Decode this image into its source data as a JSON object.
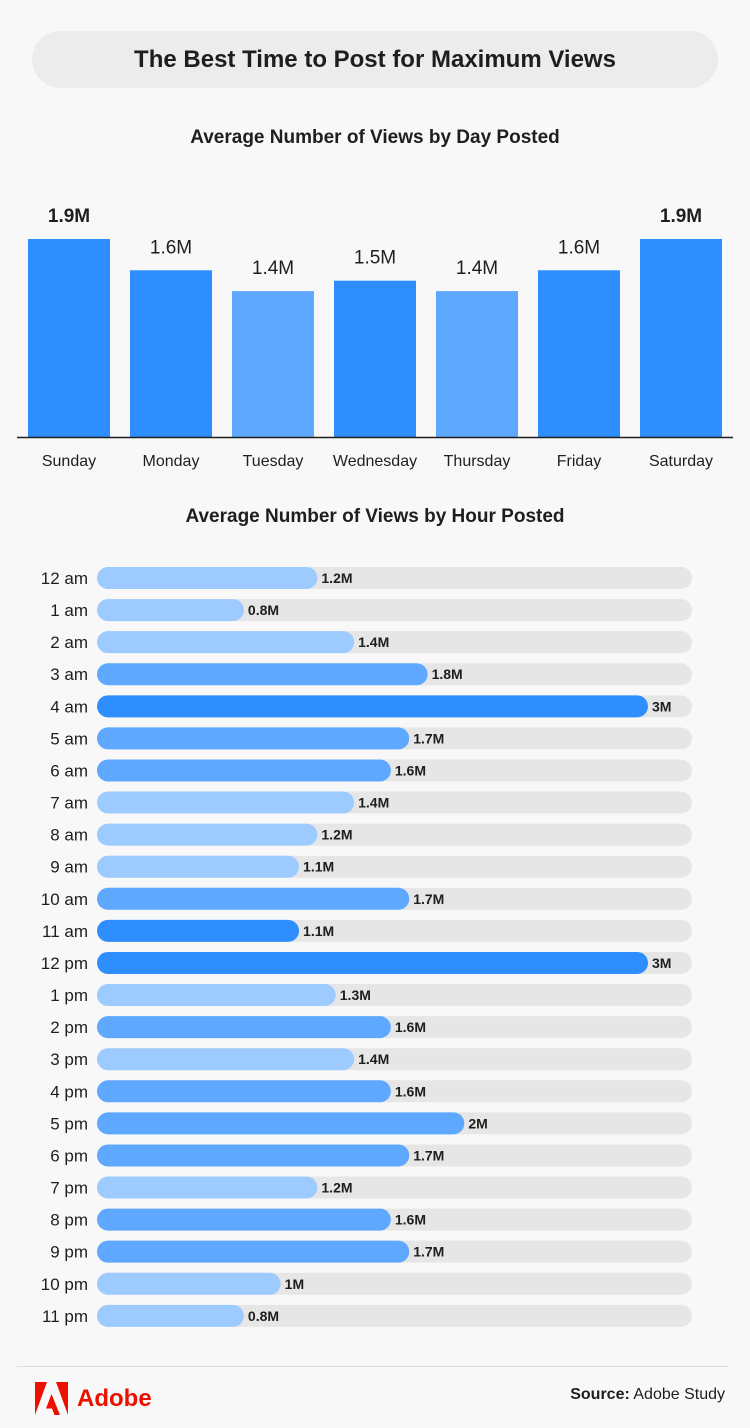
{
  "title": "The Best Time to Post for Maximum Views",
  "colors": {
    "dark": "#2f8efe",
    "medium": "#5ea8ff",
    "light": "#9ecbff",
    "track": "#e6e6e6",
    "brand": "#eb1000"
  },
  "chart_data": [
    {
      "type": "bar",
      "title": "Average Number of Views by Day Posted",
      "unit": "M",
      "categories": [
        "Sunday",
        "Monday",
        "Tuesday",
        "Wednesday",
        "Thursday",
        "Friday",
        "Saturday"
      ],
      "values": [
        1.9,
        1.6,
        1.4,
        1.5,
        1.4,
        1.6,
        1.9
      ],
      "labels": [
        "1.9M",
        "1.6M",
        "1.4M",
        "1.5M",
        "1.4M",
        "1.6M",
        "1.9M"
      ],
      "tiers": [
        "dark",
        "dark",
        "medium",
        "dark",
        "medium",
        "dark",
        "dark"
      ],
      "highlight": [
        true,
        false,
        false,
        false,
        false,
        false,
        true
      ],
      "ylim": [
        0,
        1.9
      ]
    },
    {
      "type": "bar",
      "orientation": "horizontal",
      "title": "Average Number of Views by Hour Posted",
      "unit": "M",
      "categories": [
        "12 am",
        "1 am",
        "2 am",
        "3 am",
        "4 am",
        "5 am",
        "6 am",
        "7 am",
        "8 am",
        "9 am",
        "10 am",
        "11 am",
        "12 pm",
        "1 pm",
        "2 pm",
        "3 pm",
        "4 pm",
        "5 pm",
        "6 pm",
        "7 pm",
        "8 pm",
        "9 pm",
        "10 pm",
        "11 pm"
      ],
      "values": [
        1.2,
        0.8,
        1.4,
        1.8,
        3,
        1.7,
        1.6,
        1.4,
        1.2,
        1.1,
        1.7,
        1.1,
        3,
        1.3,
        1.6,
        1.4,
        1.6,
        2,
        1.7,
        1.2,
        1.6,
        1.7,
        1,
        0.8
      ],
      "labels": [
        "1.2M",
        "0.8M",
        "1.4M",
        "1.8M",
        "3M",
        "1.7M",
        "1.6M",
        "1.4M",
        "1.2M",
        "1.1M",
        "1.7M",
        "1.1M",
        "3M",
        "1.3M",
        "1.6M",
        "1.4M",
        "1.6M",
        "2M",
        "1.7M",
        "1.2M",
        "1.6M",
        "1.7M",
        "1M",
        "0.8M"
      ],
      "tiers": [
        "light",
        "light",
        "light",
        "medium",
        "dark",
        "medium",
        "medium",
        "light",
        "light",
        "light",
        "medium",
        "dark",
        "dark",
        "light",
        "medium",
        "light",
        "medium",
        "medium",
        "medium",
        "light",
        "medium",
        "medium",
        "light",
        "light"
      ],
      "xlim": [
        0,
        3.25
      ]
    }
  ],
  "footer": {
    "brand": "Adobe",
    "source_label": "Source:",
    "source_value": "Adobe Study"
  }
}
